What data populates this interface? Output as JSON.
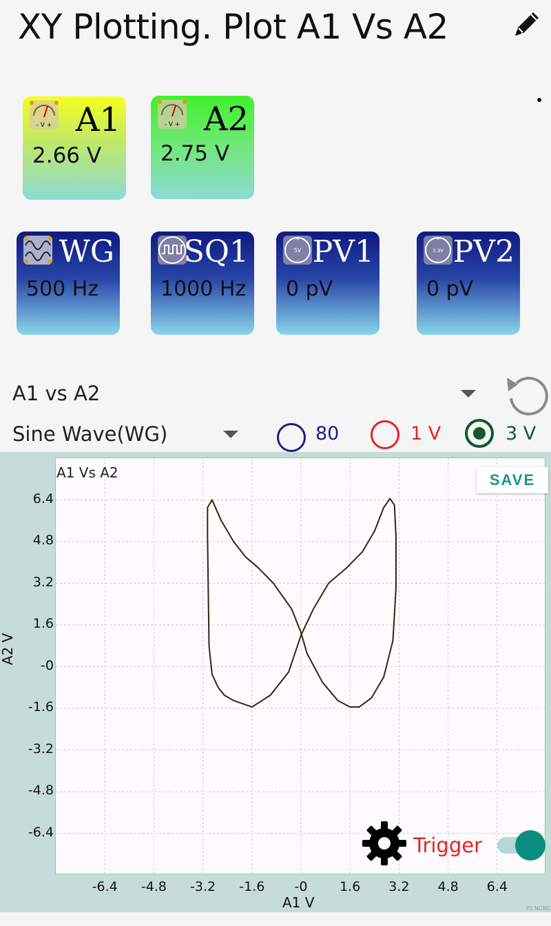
{
  "header": {
    "title": "XY Plotting. Plot A1 Vs A2",
    "edit_icon": "pencil-icon",
    "menu_icon": "overflow-dot-icon"
  },
  "meters": [
    {
      "name": "A1",
      "value": "2.66 V",
      "icon": "voltmeter-icon",
      "badge_text": "- V +"
    },
    {
      "name": "A2",
      "value": "2.75 V",
      "icon": "voltmeter-icon",
      "badge_text": "- V +"
    }
  ],
  "generators": [
    {
      "name": "WG",
      "value": "500 Hz",
      "icon": "sine-wave-icon"
    },
    {
      "name": "SQ1",
      "value": "1000 Hz",
      "icon": "square-wave-icon"
    },
    {
      "name": "PV1",
      "value": "0 pV",
      "icon": "dial-icon",
      "badge_text": "5V"
    },
    {
      "name": "PV2",
      "value": "0 pV",
      "icon": "dial-icon",
      "badge_text": "3.3V"
    }
  ],
  "controls": {
    "plot_select": "A1 vs A2",
    "wave_select": "Sine Wave(WG)",
    "reset_icon": "reset-icon",
    "radios": [
      {
        "label": "80",
        "color": "#1a237e",
        "selected": false
      },
      {
        "label": "1 V",
        "color": "#e02424",
        "selected": false
      },
      {
        "label": "3 V",
        "color": "#0d5c2a",
        "selected": true
      }
    ]
  },
  "plot": {
    "title": "A1 Vs A2",
    "save_label": "SAVE",
    "trigger_label": "Trigger",
    "trigger_on": true,
    "gear_icon": "gear-icon",
    "watermark": "Fit.NONE"
  },
  "chart_data": {
    "type": "line",
    "title": "A1 Vs A2",
    "xlabel": "A1 V",
    "ylabel": "A2 V",
    "xlim": [
      -8.0,
      8.0
    ],
    "ylim": [
      -8.0,
      8.0
    ],
    "x_ticks": [
      "-6.4",
      "-4.8",
      "-3.2",
      "-1.6",
      "-0",
      "1.6",
      "3.2",
      "4.8",
      "6.4"
    ],
    "y_ticks": [
      "6.4",
      "4.8",
      "3.2",
      "1.6",
      "-0",
      "-1.6",
      "-3.2",
      "-4.8",
      "-6.4"
    ],
    "grid": true,
    "series": [
      {
        "color": "#2a2a10",
        "x": [
          -3.0,
          -2.9,
          -2.7,
          -2.5,
          -2.2,
          -1.6,
          -1.0,
          -0.4,
          0.0,
          0.4,
          0.9,
          1.5,
          2.0,
          2.4,
          2.7,
          2.9,
          3.05,
          3.1,
          3.1,
          3.0,
          2.7,
          2.3,
          1.9,
          1.6,
          1.2,
          0.7,
          0.2,
          0.0,
          -0.3,
          -0.9,
          -1.4,
          -1.8,
          -2.2,
          -2.6,
          -2.9,
          -3.05,
          -3.05,
          -3.0
        ],
        "y": [
          0.8,
          -0.3,
          -0.8,
          -1.1,
          -1.3,
          -1.55,
          -1.1,
          -0.2,
          1.2,
          2.2,
          3.2,
          3.8,
          4.4,
          5.2,
          6.1,
          6.45,
          6.2,
          5.0,
          3.0,
          1.0,
          -0.4,
          -1.2,
          -1.55,
          -1.55,
          -1.3,
          -0.6,
          0.5,
          1.3,
          2.2,
          3.2,
          3.8,
          4.2,
          4.8,
          5.6,
          6.4,
          6.1,
          5.0,
          0.8
        ]
      }
    ]
  }
}
